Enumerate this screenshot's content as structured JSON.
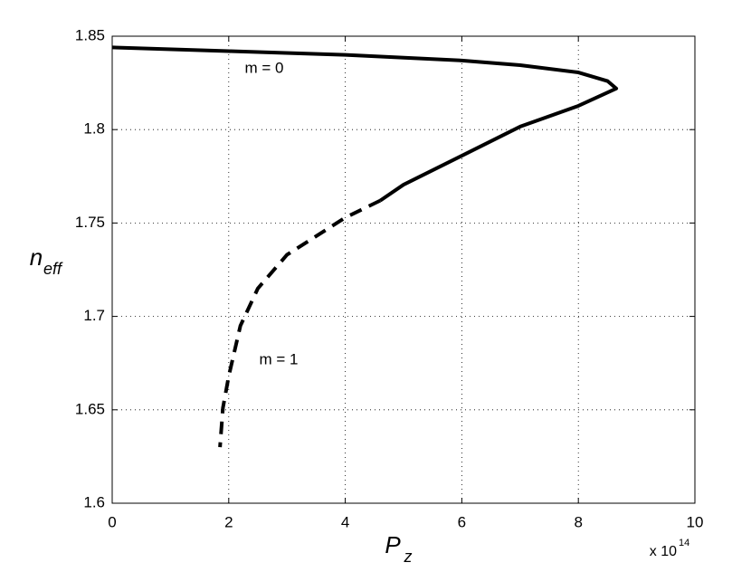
{
  "chart_data": {
    "type": "line",
    "xlabel": "P",
    "xlabel_sub": "z",
    "ylabel": "n",
    "ylabel_sub": "eff",
    "x_multiplier": "x 10",
    "x_multiplier_exp": "14",
    "xlim": [
      0,
      10
    ],
    "xticks": [
      0,
      2,
      4,
      6,
      8,
      10
    ],
    "ylim": [
      1.6,
      1.85
    ],
    "yticks": [
      1.6,
      1.65,
      1.7,
      1.75,
      1.8,
      1.85
    ],
    "grid": true,
    "series": [
      {
        "name": "m = 0",
        "color": "#000000",
        "dashed": false,
        "x": [
          0,
          2,
          4,
          6,
          7,
          8,
          8.5,
          8.65,
          8,
          7,
          6,
          5,
          4.6
        ],
        "values": [
          1.844,
          1.842,
          1.84,
          1.837,
          1.8345,
          1.8306,
          1.826,
          1.822,
          1.8127,
          1.8016,
          1.786,
          1.7705,
          1.762
        ]
      },
      {
        "name": "m = 1",
        "color": "#000000",
        "dashed": true,
        "x": [
          4.6,
          4,
          3,
          2.5,
          2.2,
          2,
          1.9,
          1.85
        ],
        "values": [
          1.762,
          1.7529,
          1.733,
          1.715,
          1.695,
          1.668,
          1.651,
          1.63
        ]
      }
    ]
  }
}
